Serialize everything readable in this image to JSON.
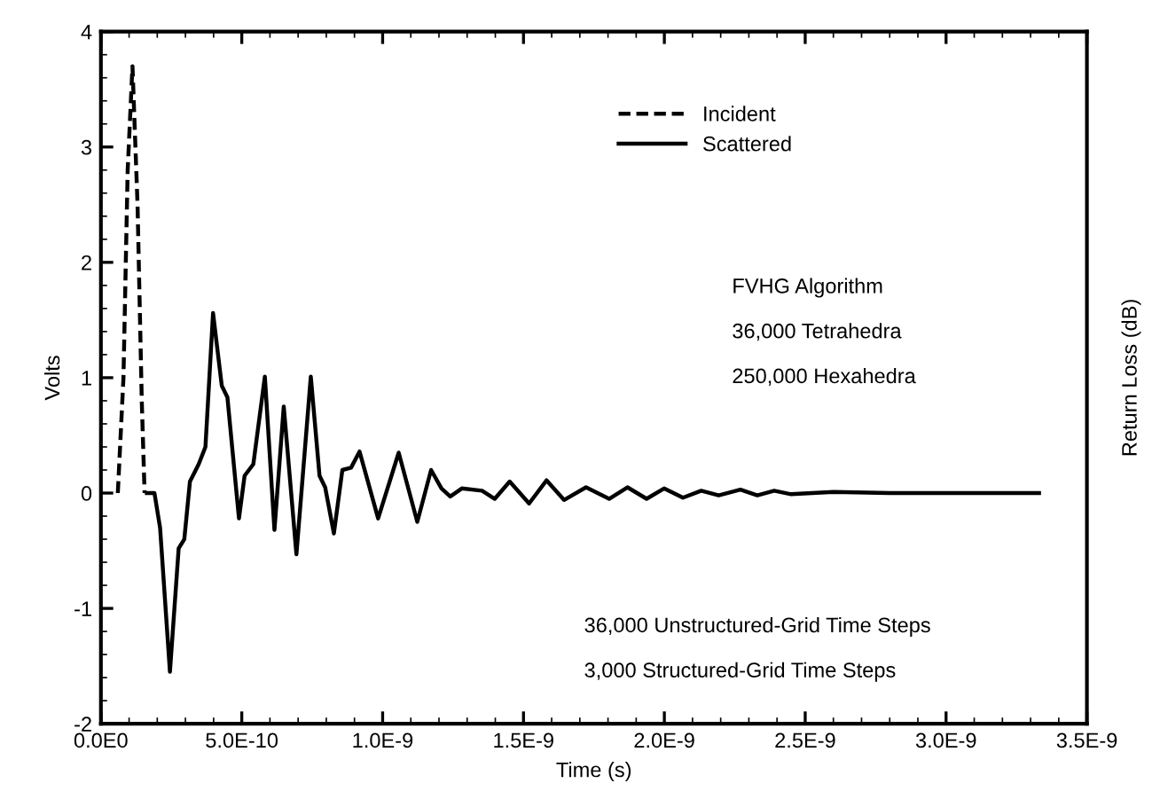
{
  "chart_data": {
    "type": "line",
    "xlabel": "Time (s)",
    "ylabel": "Volts",
    "y2label": "Return Loss (dB)",
    "xlim": [
      0,
      3.5e-09
    ],
    "ylim": [
      -2,
      4
    ],
    "xticks": [
      {
        "value": 0,
        "label": "0.0E0"
      },
      {
        "value": 5e-10,
        "label": "5.0E-10"
      },
      {
        "value": 1e-09,
        "label": "1.0E-9"
      },
      {
        "value": 1.5e-09,
        "label": "1.5E-9"
      },
      {
        "value": 2e-09,
        "label": "2.0E-9"
      },
      {
        "value": 2.5e-09,
        "label": "2.5E-9"
      },
      {
        "value": 3e-09,
        "label": "3.0E-9"
      },
      {
        "value": 3.5e-09,
        "label": "3.5E-9"
      }
    ],
    "yticks": [
      -2,
      -1,
      0,
      1,
      2,
      3,
      4
    ],
    "grid": false,
    "legend": "top right",
    "series": [
      {
        "name": "Incident",
        "color": "#000000",
        "line_style": "dashed",
        "x": [
          6e-11,
          8e-11,
          9.5e-11,
          1.12e-10,
          1.3e-10,
          1.45e-10,
          1.55e-10
        ],
        "values": [
          0,
          1.0,
          2.8,
          3.7,
          2.5,
          0.8,
          0
        ]
      },
      {
        "name": "Scattered",
        "color": "#000000",
        "line_style": "solid",
        "x": [
          1.63e-10,
          1.9e-10,
          2.1e-10,
          2.45e-10,
          2.76e-10,
          2.96e-10,
          3.16e-10,
          3.47e-10,
          3.71e-10,
          3.98e-10,
          4.29e-10,
          4.49e-10,
          4.9e-10,
          5.1e-10,
          5.41e-10,
          5.82e-10,
          6.16e-10,
          6.49e-10,
          6.94e-10,
          7.45e-10,
          7.76e-10,
          7.96e-10,
          8.27e-10,
          8.57e-10,
          8.88e-10,
          9.18e-10,
          9.84e-10,
          1.057e-09,
          1.123e-09,
          1.172e-09,
          1.209e-09,
          1.24e-09,
          1.281e-09,
          1.353e-09,
          1.398e-09,
          1.451e-09,
          1.52e-09,
          1.582e-09,
          1.644e-09,
          1.722e-09,
          1.804e-09,
          1.869e-09,
          1.937e-09,
          1.999e-09,
          2.066e-09,
          2.131e-09,
          2.193e-09,
          2.27e-09,
          2.33e-09,
          2.39e-09,
          2.45e-09,
          2.6e-09,
          2.8e-09,
          3.33e-09
        ],
        "values": [
          0,
          0,
          -0.3,
          -1.55,
          -0.48,
          -0.4,
          0.1,
          0.25,
          0.4,
          1.56,
          0.93,
          0.83,
          -0.22,
          0.15,
          0.25,
          1.01,
          -0.32,
          0.75,
          -0.53,
          1.01,
          0.15,
          0.05,
          -0.35,
          0.2,
          0.22,
          0.36,
          -0.22,
          0.35,
          -0.25,
          0.2,
          0.04,
          -0.03,
          0.04,
          0.02,
          -0.05,
          0.1,
          -0.09,
          0.11,
          -0.06,
          0.05,
          -0.05,
          0.05,
          -0.05,
          0.04,
          -0.04,
          0.02,
          -0.02,
          0.03,
          -0.02,
          0.02,
          -0.01,
          0.01,
          0,
          0
        ]
      }
    ],
    "annotations": [
      "FVHG Algorithm",
      "36,000 Tetrahedra",
      "250,000 Hexahedra",
      "36,000 Unstructured-Grid Time Steps",
      "3,000 Structured-Grid Time Steps"
    ]
  }
}
